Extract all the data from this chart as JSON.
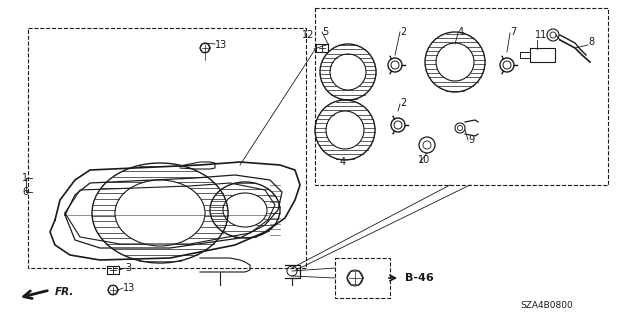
{
  "bg_color": "#ffffff",
  "line_color": "#1a1a1a",
  "sza_text": "SZA4B0800",
  "figsize": [
    6.4,
    3.19
  ],
  "dpi": 100
}
